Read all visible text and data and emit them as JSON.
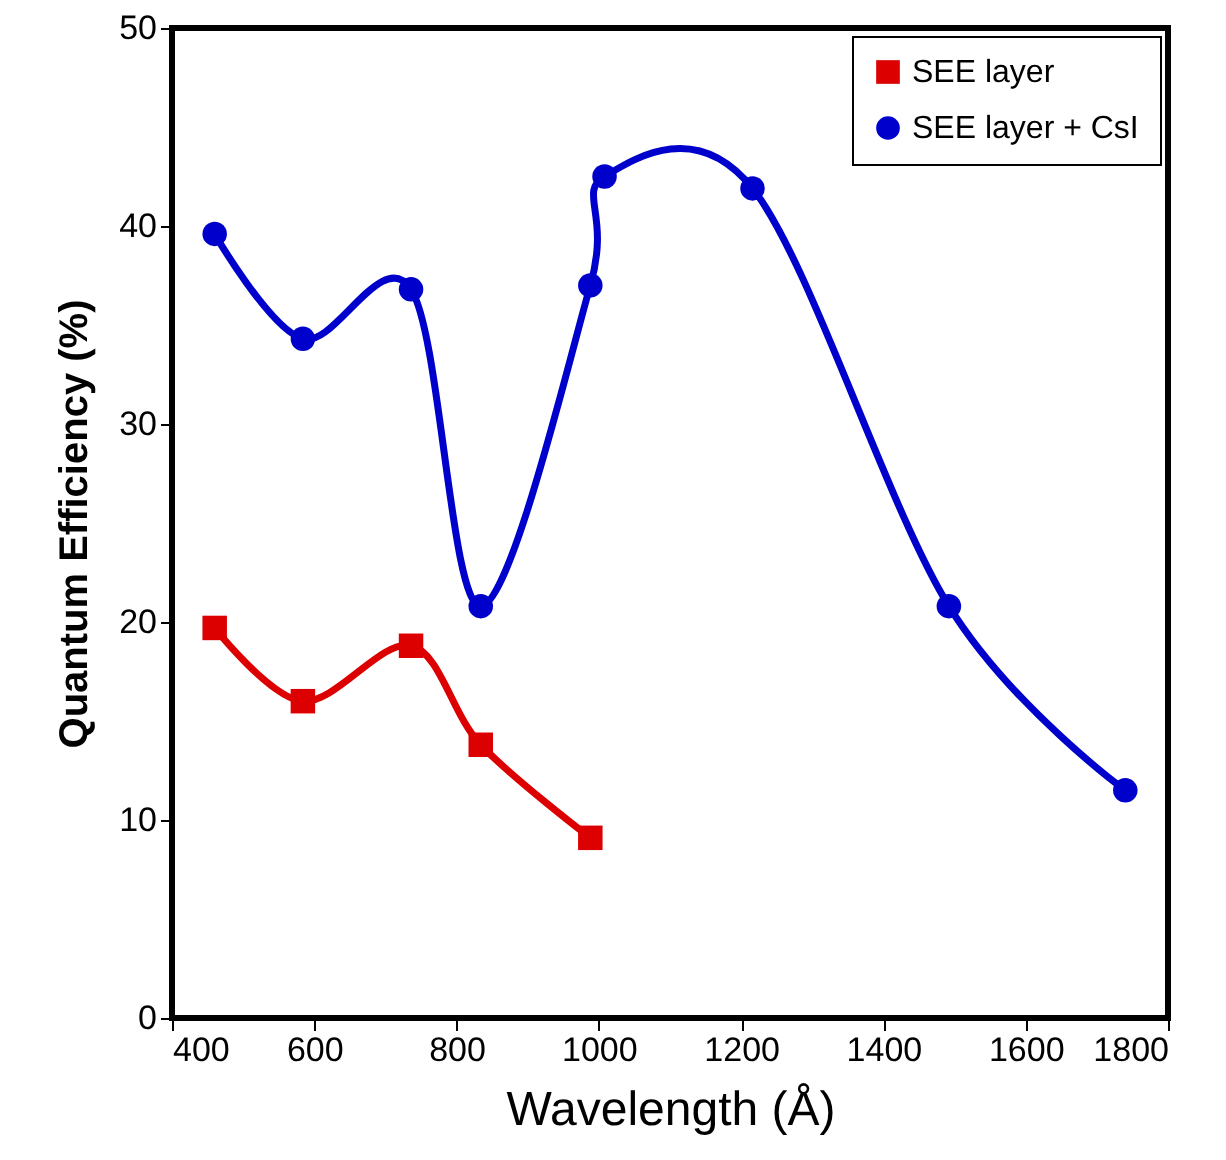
{
  "chart_data": {
    "type": "line",
    "xlabel": "Wavelength (Å)",
    "ylabel": "Quantum Efficiency (%)",
    "xlim": [
      400,
      1800
    ],
    "xticks": [
      400,
      600,
      800,
      1000,
      1200,
      1400,
      1600,
      1800
    ],
    "ylim": [
      0,
      50
    ],
    "yticks": [
      0,
      10,
      20,
      30,
      40,
      50
    ],
    "grid": false,
    "legend": "top right",
    "series": [
      {
        "name": "SEE layer",
        "color": "#dd0000",
        "marker": "square",
        "x": [
          460,
          584,
          736,
          834,
          988
        ],
        "values": [
          19.7,
          16.0,
          18.8,
          13.8,
          9.1
        ]
      },
      {
        "name": "SEE layer + CsI",
        "color": "#0000cc",
        "marker": "circle",
        "x": [
          460,
          584,
          736,
          834,
          988,
          1008,
          1216,
          1492,
          1740
        ],
        "values": [
          39.6,
          34.3,
          36.8,
          20.8,
          37.0,
          42.5,
          41.9,
          20.8,
          11.5
        ]
      }
    ]
  }
}
